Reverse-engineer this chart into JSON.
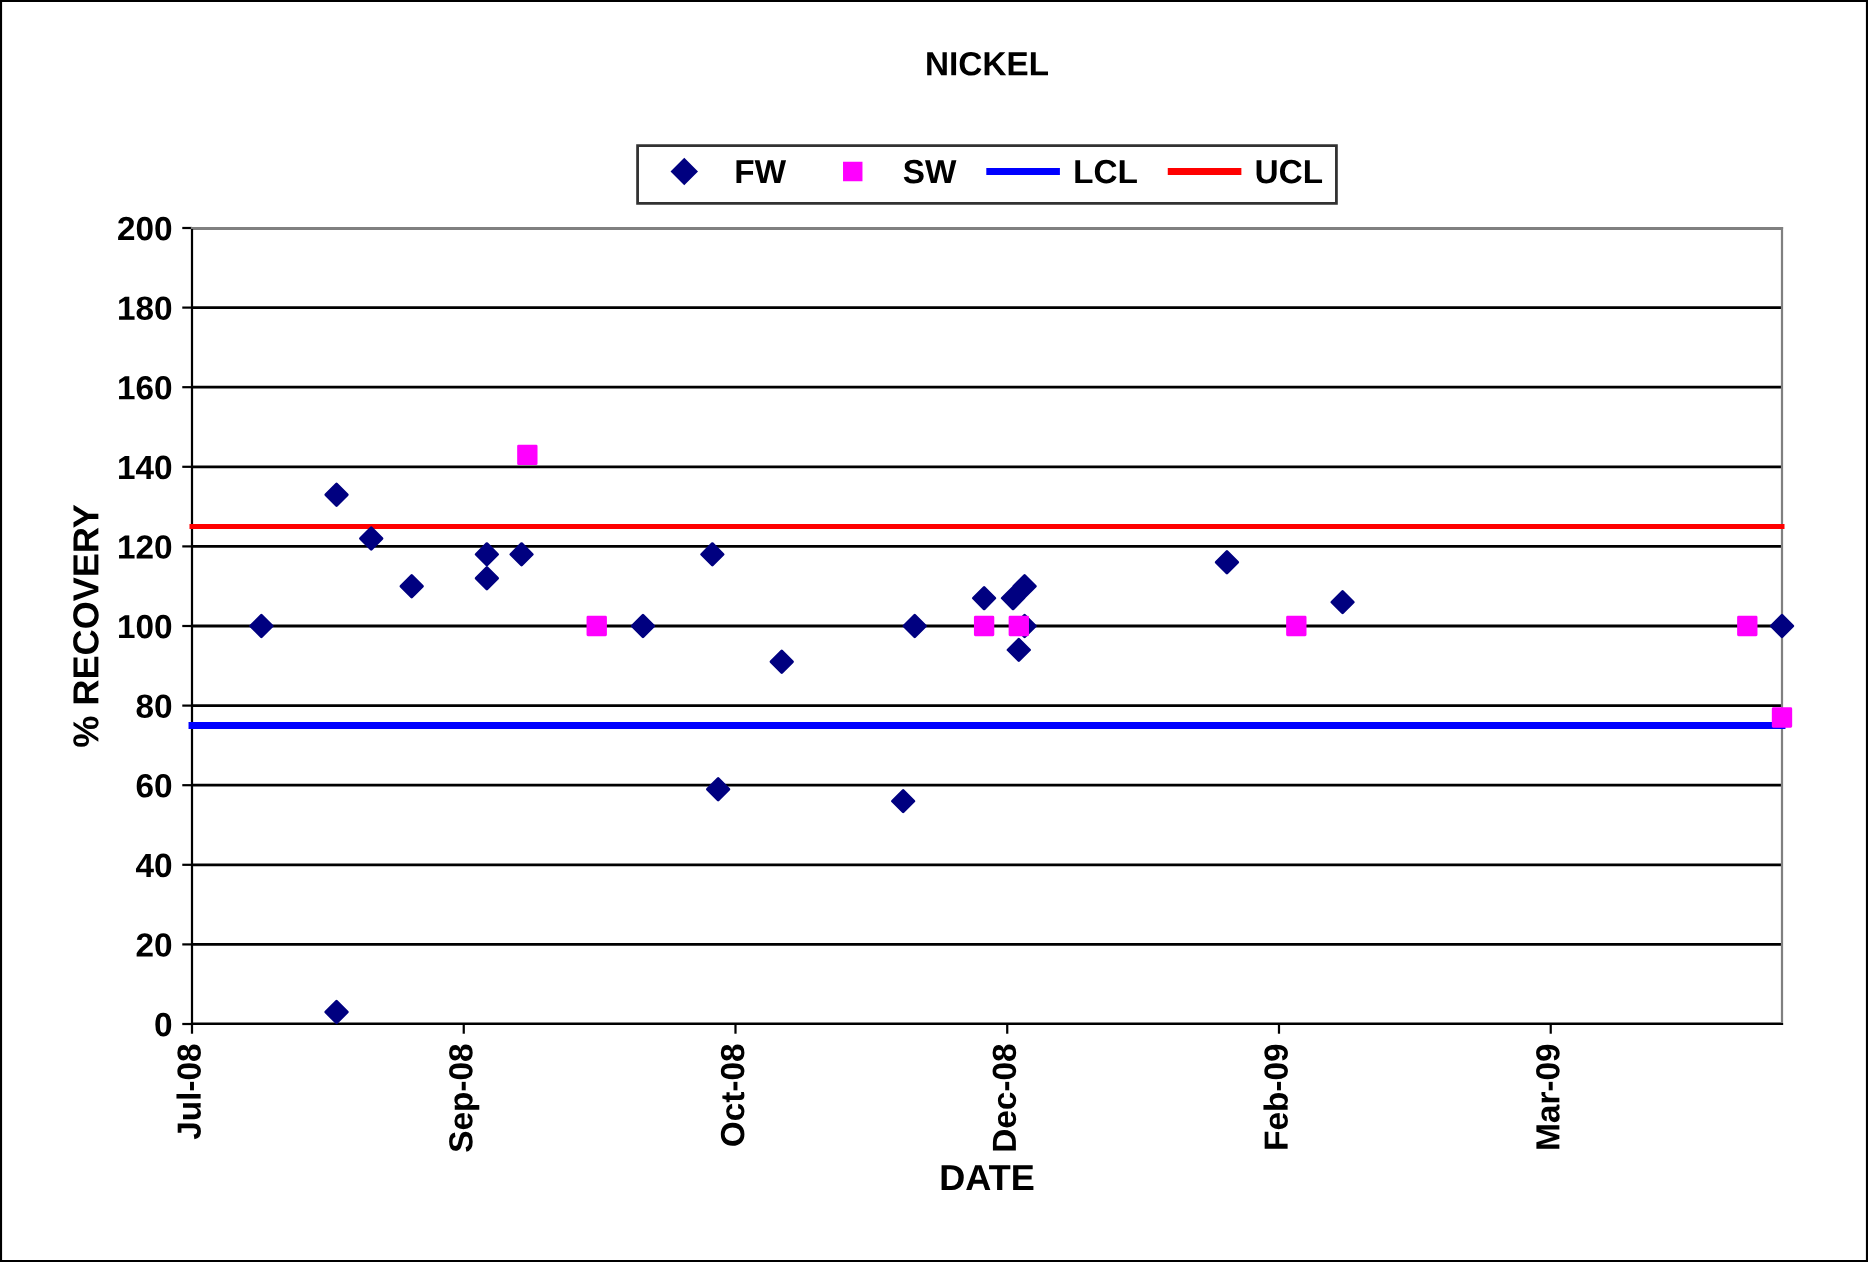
{
  "chart_data": {
    "type": "scatter",
    "title": "NICKEL",
    "xlabel": "DATE",
    "ylabel": "% RECOVERY",
    "xlim": [
      "2008-07-29",
      "2009-04-30"
    ],
    "ylim": [
      0,
      200
    ],
    "xticks": [
      {
        "value": "2008-07-29",
        "label": "Jul-08"
      },
      {
        "value": "2008-09-14",
        "label": "Sep-08"
      },
      {
        "value": "2008-10-31",
        "label": "Oct-08"
      },
      {
        "value": "2008-12-17",
        "label": "Dec-08"
      },
      {
        "value": "2009-02-02",
        "label": "Feb-09"
      },
      {
        "value": "2009-03-21",
        "label": "Mar-09"
      }
    ],
    "yticks": [
      0,
      20,
      40,
      60,
      80,
      100,
      120,
      140,
      160,
      180,
      200
    ],
    "grid": "y",
    "legend": "top",
    "series": [
      {
        "name": "FW",
        "marker": "diamond",
        "color": "#000080",
        "x": [
          "2008-08-10",
          "2008-08-23",
          "2008-08-23",
          "2008-08-29",
          "2008-09-05",
          "2008-09-18",
          "2008-09-18",
          "2008-09-24",
          "2008-10-15",
          "2008-10-27",
          "2008-10-28",
          "2008-11-08",
          "2008-11-29",
          "2008-12-01",
          "2008-12-13",
          "2008-12-18",
          "2008-12-20",
          "2008-12-20",
          "2008-12-19",
          "2009-01-24",
          "2009-02-13",
          "2009-04-30"
        ],
        "values": [
          100,
          133,
          3,
          122,
          110,
          118,
          112,
          118,
          100,
          118,
          59,
          91,
          56,
          100,
          107,
          107,
          110,
          100,
          94,
          116,
          106,
          100
        ]
      },
      {
        "name": "SW",
        "marker": "square",
        "color": "#ff00ff",
        "x": [
          "2008-09-25",
          "2008-10-07",
          "2008-12-13",
          "2008-12-19",
          "2009-02-05",
          "2009-04-24",
          "2009-04-30"
        ],
        "values": [
          143,
          100,
          100,
          100,
          100,
          100,
          77
        ]
      },
      {
        "name": "LCL",
        "type": "line",
        "line_style": "solid",
        "color": "#0000ff",
        "x": [
          "2008-07-29",
          "2009-04-30"
        ],
        "values": [
          75,
          75
        ]
      },
      {
        "name": "UCL",
        "type": "line",
        "line_style": "solid",
        "color": "#ff0000",
        "x": [
          "2008-07-29",
          "2009-04-30"
        ],
        "values": [
          125,
          125
        ]
      }
    ]
  }
}
